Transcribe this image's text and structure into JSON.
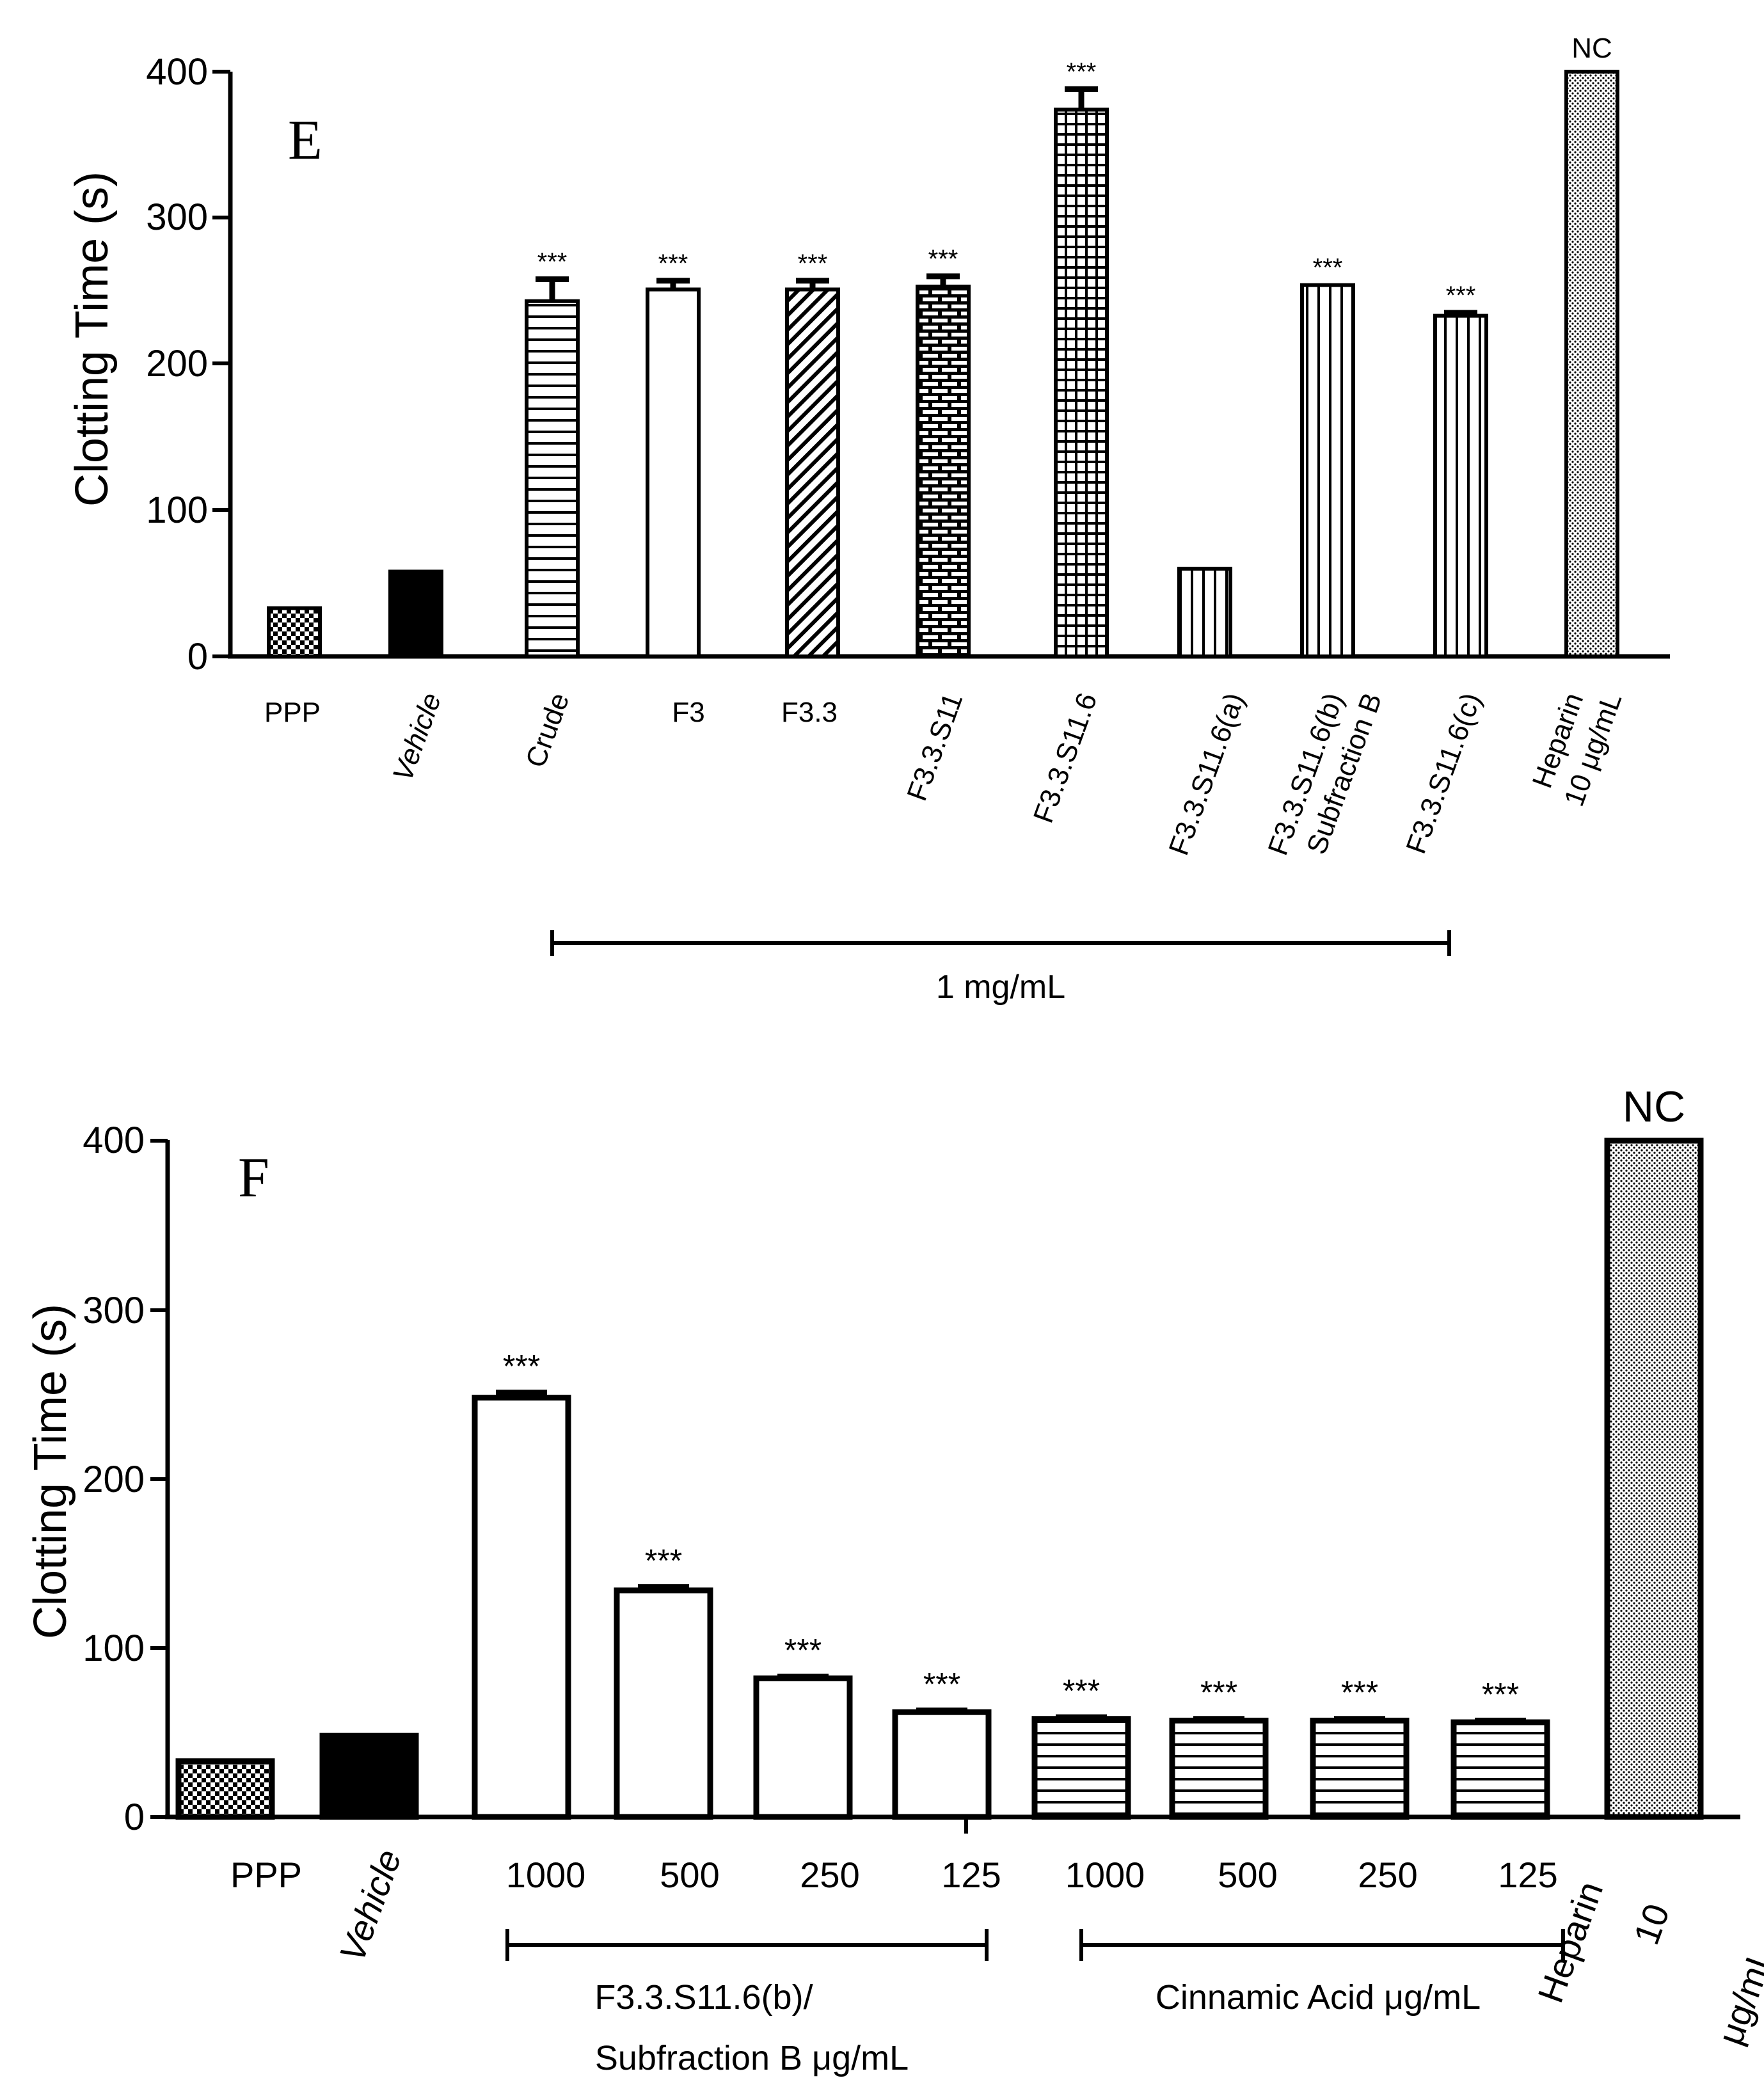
{
  "chart_data": [
    {
      "type": "bar",
      "panel": "E",
      "ylabel": "Clotting Time (s)",
      "ylim": [
        0,
        400
      ],
      "yticks": [
        "0",
        "100",
        "200",
        "300",
        "400"
      ],
      "categories": [
        "PPP",
        "Vehicle",
        "Crude",
        "F3",
        "F3.3",
        "F3.3.S11",
        "F3.3.S11.6",
        "F3.3.S11.6(a)",
        "F3.3.S11.6(b)",
        "F3.3.S11.6(c)",
        "Heparin"
      ],
      "category_sublabels": [
        "",
        "",
        "",
        "",
        "",
        "",
        "",
        "",
        "Subfraction B",
        "",
        "10 μg/mL"
      ],
      "values": [
        33,
        58,
        243,
        251,
        251,
        253,
        374,
        60,
        254,
        233,
        400
      ],
      "errors": [
        0,
        0,
        15,
        6,
        6,
        7,
        14,
        0,
        0,
        2,
        0
      ],
      "patterns": [
        "checker",
        "solid",
        "hlines",
        "white",
        "diag",
        "brick",
        "grid",
        "vlines",
        "vlines",
        "vlines",
        "dots"
      ],
      "annotations": [
        "",
        "",
        "***",
        "***",
        "***",
        "***",
        "***",
        "",
        "***",
        "***",
        "NC"
      ],
      "group_label": "1 mg/mL",
      "group_range": [
        "Crude",
        "F3.3.S11.6(c)"
      ]
    },
    {
      "type": "bar",
      "panel": "F",
      "ylabel": "Clotting Time (s)",
      "ylim": [
        0,
        400
      ],
      "yticks": [
        "0",
        "100",
        "200",
        "300",
        "400"
      ],
      "categories": [
        "PPP",
        "Vehicle",
        "1000",
        "500",
        "250",
        "125",
        "1000",
        "500",
        "250",
        "125",
        "Heparin"
      ],
      "heparin_sublabels": [
        "10",
        "μg/mL"
      ],
      "values": [
        33,
        48,
        248,
        134,
        82,
        62,
        58,
        57,
        57,
        56,
        400
      ],
      "errors": [
        0,
        0,
        3,
        2,
        1,
        1,
        1,
        1,
        1,
        1,
        0
      ],
      "patterns": [
        "checker",
        "solid",
        "white",
        "white",
        "white",
        "white",
        "hlines",
        "hlines",
        "hlines",
        "hlines",
        "dots"
      ],
      "annotations": [
        "",
        "",
        "***",
        "***",
        "***",
        "***",
        "***",
        "***",
        "***",
        "***",
        "NC"
      ],
      "group_labels": [
        {
          "lines": [
            "F3.3.S11.6(b)/",
            "Subfraction B μg/mL"
          ],
          "range": [
            2,
            5
          ]
        },
        {
          "lines": [
            "Cinnamic Acid μg/mL"
          ],
          "range": [
            6,
            9
          ]
        }
      ]
    }
  ]
}
